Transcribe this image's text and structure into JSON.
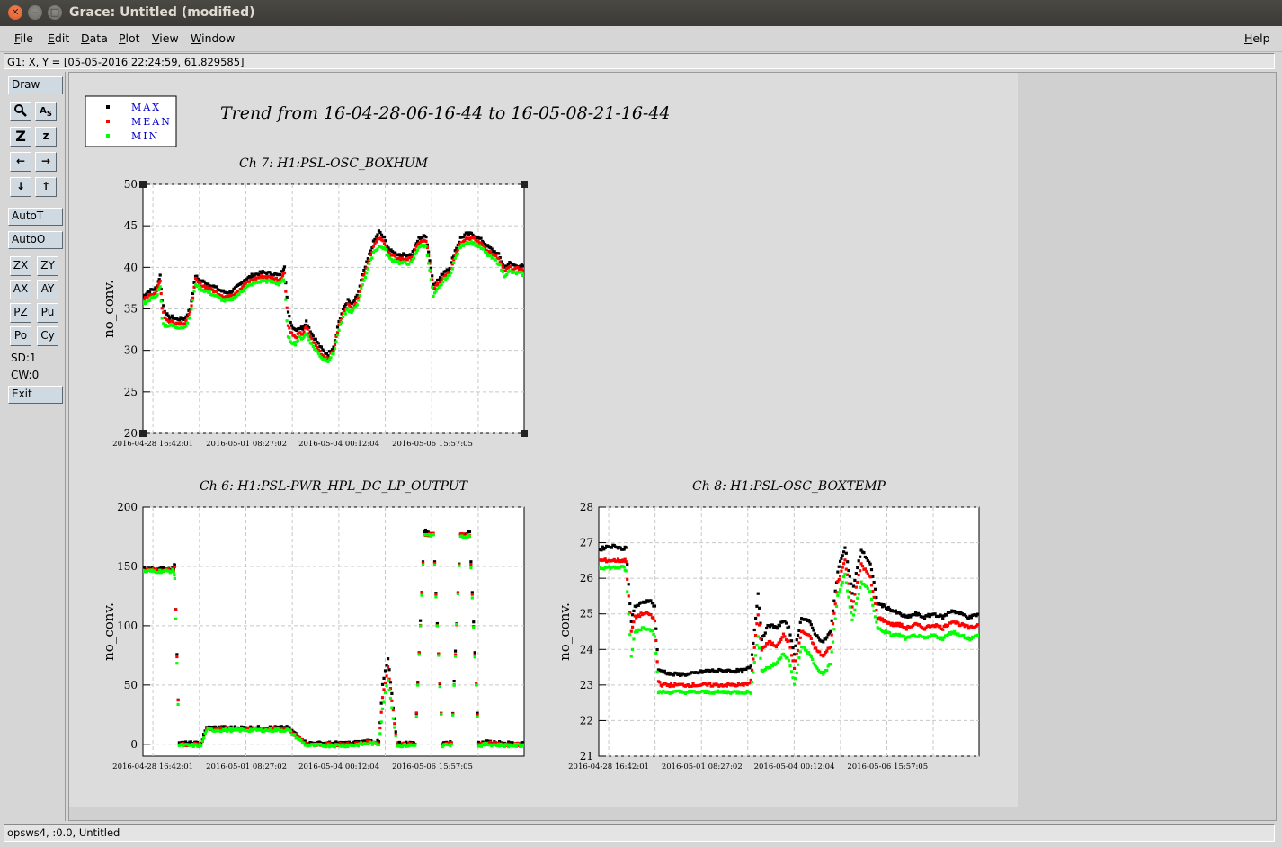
{
  "window": {
    "title": "Grace: Untitled (modified)"
  },
  "menubar": {
    "items": [
      "File",
      "Edit",
      "Data",
      "Plot",
      "View",
      "Window"
    ],
    "help": "Help"
  },
  "locator": "G1: X, Y = [05-05-2016 22:24:59, 61.829585]",
  "toolbar": {
    "draw": "Draw",
    "autot": "AutoT",
    "autoo": "AutoO",
    "exit": "Exit",
    "sd": "SD:1",
    "cw": "CW:0",
    "small": [
      "ZX",
      "ZY",
      "AX",
      "AY",
      "PZ",
      "Pu",
      "Po",
      "Cy"
    ],
    "icons": [
      "zoom-icon",
      "autoscale-text-icon",
      "zoom-in-icon",
      "zoom-out-icon",
      "left-arrow-icon",
      "right-arrow-icon",
      "down-arrow-icon",
      "up-arrow-icon"
    ]
  },
  "status": "opsws4, :0.0, Untitled",
  "colors": {
    "max": "#000000",
    "mean": "#ff0000",
    "min": "#00ff00",
    "legend_text": "#0000cc"
  },
  "legend": [
    "MAX",
    "MEAN",
    "MIN"
  ],
  "figure_title": "Trend from 16-04-28-06-16-44 to 16-05-08-21-16-44",
  "chart_data": [
    {
      "type": "scatter",
      "title": "Ch 7: H1:PSL-OSC_BOXHUM",
      "ylabel": "no_conv.",
      "ylim": [
        20,
        50
      ],
      "yticks": [
        "20",
        "25",
        "30",
        "35",
        "40",
        "45",
        "50"
      ],
      "xticks": [
        "2016-04-28 16:42:01",
        "2016-05-01 08:27:02",
        "2016-05-04 00:12:04",
        "2016-05-06 15:57:05"
      ],
      "x_days": [
        0,
        0.25,
        0.5,
        0.75,
        0.85,
        0.95,
        1.05,
        1.2,
        1.4,
        1.6,
        1.8,
        2.0,
        2.3,
        2.6,
        2.9,
        3.1,
        3.3,
        3.6,
        3.9,
        4.2,
        4.5,
        4.8,
        5.0,
        5.3,
        5.55,
        5.6,
        5.8,
        6.0,
        6.3,
        6.6,
        6.9,
        7.2,
        7.5,
        7.7,
        7.8,
        8.0,
        8.2,
        8.4,
        8.6,
        8.8,
        9.0,
        9.3,
        9.6,
        9.9,
        10.2,
        10.5,
        10.8,
        11.1,
        11.3,
        11.5,
        11.8,
        12.1,
        12.4,
        12.7,
        13.0,
        13.3,
        13.6,
        13.9,
        14.2,
        14.5,
        14.8,
        15.2,
        15.6,
        16.0,
        16.3,
        16.6,
        16.9,
        17.2,
        17.5,
        17.8,
        18.1,
        18.4,
        18.7,
        19.0,
        19.3,
        19.6,
        19.9,
        20.2,
        20.5,
        20.8,
        21.0
      ],
      "series": [
        {
          "name": "MAX",
          "values": [
            36.5,
            37,
            37.3,
            37.5,
            38.3,
            39,
            36,
            34.8,
            34,
            34,
            33.8,
            33.8,
            33.8,
            35,
            39,
            38.4,
            38.3,
            38,
            37.7,
            37.3,
            37,
            37,
            37.3,
            37.8,
            38.3,
            38.5,
            38.7,
            39,
            39.2,
            39.4,
            39.3,
            39.2,
            39,
            39.6,
            40.2,
            34.5,
            33,
            32.5,
            32.7,
            32.7,
            33.5,
            32,
            31,
            30,
            29.5,
            30.5,
            33.5,
            35.3,
            36,
            35.5,
            36.5,
            39,
            41,
            43,
            44.3,
            43.5,
            42,
            41.7,
            41.5,
            41.5,
            41.5,
            43.5,
            43.8,
            38,
            38.5,
            39.5,
            40,
            42,
            43.5,
            44,
            44,
            43.7,
            43.2,
            42.5,
            42,
            41.5,
            40,
            40.5,
            40.2,
            40.2,
            40
          ]
        },
        {
          "name": "MEAN",
          "values": [
            36,
            36.5,
            36.8,
            37,
            37.8,
            38.5,
            35.2,
            34,
            33.5,
            33.5,
            33.3,
            33.3,
            33.3,
            34.5,
            38.5,
            38,
            37.8,
            37.5,
            37.2,
            36.8,
            36.5,
            36.5,
            36.8,
            37.3,
            37.8,
            38,
            38.2,
            38.5,
            38.7,
            38.9,
            38.8,
            38.7,
            38.5,
            39,
            39.4,
            33,
            32,
            31.5,
            32,
            32,
            32.8,
            31.3,
            30.3,
            29.4,
            29,
            30,
            33,
            34.8,
            35.5,
            35,
            36,
            38.5,
            40.5,
            42.5,
            43.5,
            43,
            41.5,
            41.2,
            41,
            41,
            41,
            43,
            43.2,
            37.5,
            38,
            39,
            39.5,
            41.5,
            43,
            43.5,
            43.5,
            43.2,
            42.7,
            42,
            41.5,
            41,
            39.5,
            40,
            39.8,
            39.8,
            39.6
          ]
        },
        {
          "name": "MIN",
          "values": [
            35.6,
            36,
            36.3,
            36.5,
            37.2,
            37.8,
            33.8,
            33,
            33,
            33,
            32.8,
            32.8,
            32.8,
            34,
            38,
            37.5,
            37.3,
            37,
            36.7,
            36.3,
            36,
            36,
            36.3,
            36.8,
            37.3,
            37.5,
            37.7,
            38,
            38.2,
            38.4,
            38.3,
            38.2,
            38,
            38.5,
            38.2,
            31.5,
            31,
            30.8,
            31.5,
            31.5,
            32,
            30.7,
            29.8,
            29,
            28.8,
            29.6,
            32.5,
            34.3,
            35,
            34.5,
            35.5,
            38,
            39.8,
            41.8,
            42.5,
            42.3,
            41,
            40.8,
            40.5,
            40.5,
            40.5,
            42.5,
            42.6,
            36.5,
            37.5,
            38.5,
            39,
            41,
            42.5,
            43,
            43,
            42.7,
            42.2,
            41.5,
            41,
            40.5,
            39,
            39.5,
            39.3,
            39.3,
            39.1
          ]
        }
      ]
    },
    {
      "type": "scatter",
      "title": "Ch 6: H1:PSL-PWR_HPL_DC_LP_OUTPUT",
      "ylabel": "no_conv.",
      "ylim": [
        -10,
        200
      ],
      "yticks": [
        "0",
        "50",
        "100",
        "150",
        "200"
      ],
      "xticks": [
        "2016-04-28 16:42:01",
        "2016-05-01 08:27:02",
        "2016-05-04 00:12:04",
        "2016-05-06 15:57:05"
      ],
      "x_days": [
        0,
        0.5,
        1,
        1.5,
        1.7,
        1.75,
        2,
        2.5,
        3,
        3.2,
        3.5,
        4,
        5,
        6,
        7,
        8,
        9,
        9.5,
        10,
        10.5,
        11,
        11.5,
        12,
        12.5,
        13,
        13.2,
        13.5,
        14,
        14.5,
        15,
        15.5,
        16,
        16.5,
        17,
        17.5,
        18,
        18.5,
        19,
        20,
        21
      ],
      "series": [
        {
          "name": "MAX",
          "values": [
            148,
            148,
            148,
            148,
            149,
            152,
            1,
            1,
            1,
            1,
            14,
            14,
            14,
            14,
            14,
            14,
            1,
            1,
            1,
            1,
            1,
            1,
            2,
            3,
            2,
            50,
            72,
            1,
            1,
            1,
            180,
            178,
            1,
            2,
            178,
            178,
            1,
            2,
            1,
            1
          ]
        },
        {
          "name": "MEAN",
          "values": [
            147,
            147,
            147,
            147,
            147,
            150,
            0,
            0,
            0,
            0,
            13,
            13,
            13,
            13,
            13,
            13,
            0,
            0,
            0,
            0,
            0,
            0,
            1,
            2,
            1,
            40,
            65,
            0,
            0,
            0,
            177,
            177,
            0,
            1,
            177,
            176,
            0,
            1,
            0,
            0
          ]
        },
        {
          "name": "MIN",
          "values": [
            146,
            146,
            146,
            146,
            146,
            140,
            -1,
            -1,
            -1,
            -1,
            12,
            12,
            12,
            12,
            12,
            12,
            -1,
            -1,
            -1,
            -1,
            -1,
            -1,
            0,
            1,
            0,
            30,
            55,
            -1,
            -1,
            -1,
            176,
            176,
            -1,
            0,
            176,
            175,
            -1,
            0,
            -1,
            -1
          ]
        }
      ]
    },
    {
      "type": "scatter",
      "title": "Ch 8: H1:PSL-OSC_BOXTEMP",
      "ylabel": "no_conv.",
      "ylim": [
        21,
        28
      ],
      "yticks": [
        "21",
        "22",
        "23",
        "24",
        "25",
        "26",
        "27",
        "28"
      ],
      "xticks": [
        "2016-04-28 16:42:01",
        "2016-05-01 08:27:02",
        "2016-05-04 00:12:04",
        "2016-05-06 15:57:05"
      ],
      "x_days": [
        0,
        0.5,
        1,
        1.4,
        1.5,
        1.8,
        2,
        2.4,
        2.8,
        3.1,
        3.3,
        3.5,
        4,
        5,
        6,
        7,
        8,
        8.4,
        8.8,
        9,
        9.4,
        9.8,
        10.2,
        10.5,
        10.8,
        11.2,
        11.6,
        12,
        12.4,
        12.8,
        13.2,
        13.6,
        14,
        14.5,
        15,
        15.4,
        15.8,
        16.2,
        16.6,
        17,
        17.5,
        18,
        18.5,
        19,
        19.5,
        20,
        20.5,
        21
      ],
      "series": [
        {
          "name": "MAX",
          "values": [
            26.8,
            26.9,
            26.9,
            26.8,
            26.9,
            24.8,
            25.2,
            25.3,
            25.4,
            25.2,
            23.4,
            23.4,
            23.3,
            23.3,
            23.4,
            23.4,
            23.4,
            23.5,
            25.6,
            24.3,
            24.7,
            24.6,
            24.8,
            24.6,
            23.9,
            24.9,
            24.8,
            24.4,
            24.2,
            24.5,
            26.2,
            26.9,
            25.6,
            26.8,
            26.4,
            25.3,
            25.2,
            25.1,
            25.0,
            24.9,
            25.0,
            24.9,
            25.0,
            24.9,
            25.1,
            25.0,
            24.9,
            25.0
          ]
        },
        {
          "name": "MEAN",
          "values": [
            26.5,
            26.5,
            26.5,
            26.5,
            26.5,
            24.5,
            24.9,
            25.0,
            25.0,
            24.8,
            23.1,
            23.0,
            23.0,
            23.0,
            23.0,
            23.0,
            23.0,
            23.1,
            25.0,
            24.0,
            24.2,
            24.1,
            24.4,
            24.2,
            23.5,
            24.5,
            24.4,
            24.0,
            23.8,
            24.1,
            25.9,
            26.5,
            25.2,
            26.4,
            26.0,
            24.9,
            24.8,
            24.7,
            24.7,
            24.6,
            24.7,
            24.6,
            24.7,
            24.6,
            24.8,
            24.7,
            24.6,
            24.7
          ]
        },
        {
          "name": "MIN",
          "values": [
            26.3,
            26.3,
            26.3,
            26.3,
            26.2,
            23.8,
            24.5,
            24.6,
            24.6,
            24.4,
            22.8,
            22.8,
            22.8,
            22.8,
            22.8,
            22.8,
            22.8,
            22.8,
            24.4,
            23.4,
            23.5,
            23.6,
            23.9,
            23.7,
            23.0,
            24.1,
            23.9,
            23.5,
            23.3,
            23.6,
            25.5,
            26.1,
            24.8,
            25.9,
            25.6,
            24.6,
            24.5,
            24.4,
            24.4,
            24.3,
            24.4,
            24.3,
            24.4,
            24.3,
            24.5,
            24.4,
            24.3,
            24.4
          ]
        }
      ]
    }
  ]
}
